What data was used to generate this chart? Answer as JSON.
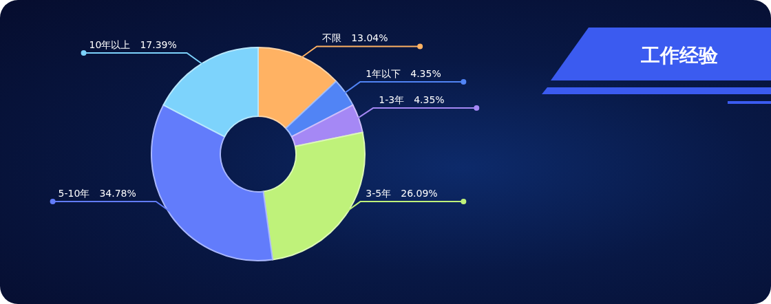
{
  "chart_data": {
    "type": "donut",
    "title": "工作经验",
    "categories": [
      "不限",
      "1年以下",
      "1-3年",
      "3-5年",
      "5-10年",
      "10年以上"
    ],
    "values": [
      13.04,
      4.35,
      4.35,
      26.09,
      34.78,
      17.39
    ],
    "value_labels": [
      "13.04%",
      "4.35%",
      "4.35%",
      "26.09%",
      "34.78%",
      "17.39%"
    ],
    "colors": [
      "#ffb263",
      "#5184f5",
      "#a588f5",
      "#bff27a",
      "#627cfb",
      "#7dd3fc"
    ]
  }
}
